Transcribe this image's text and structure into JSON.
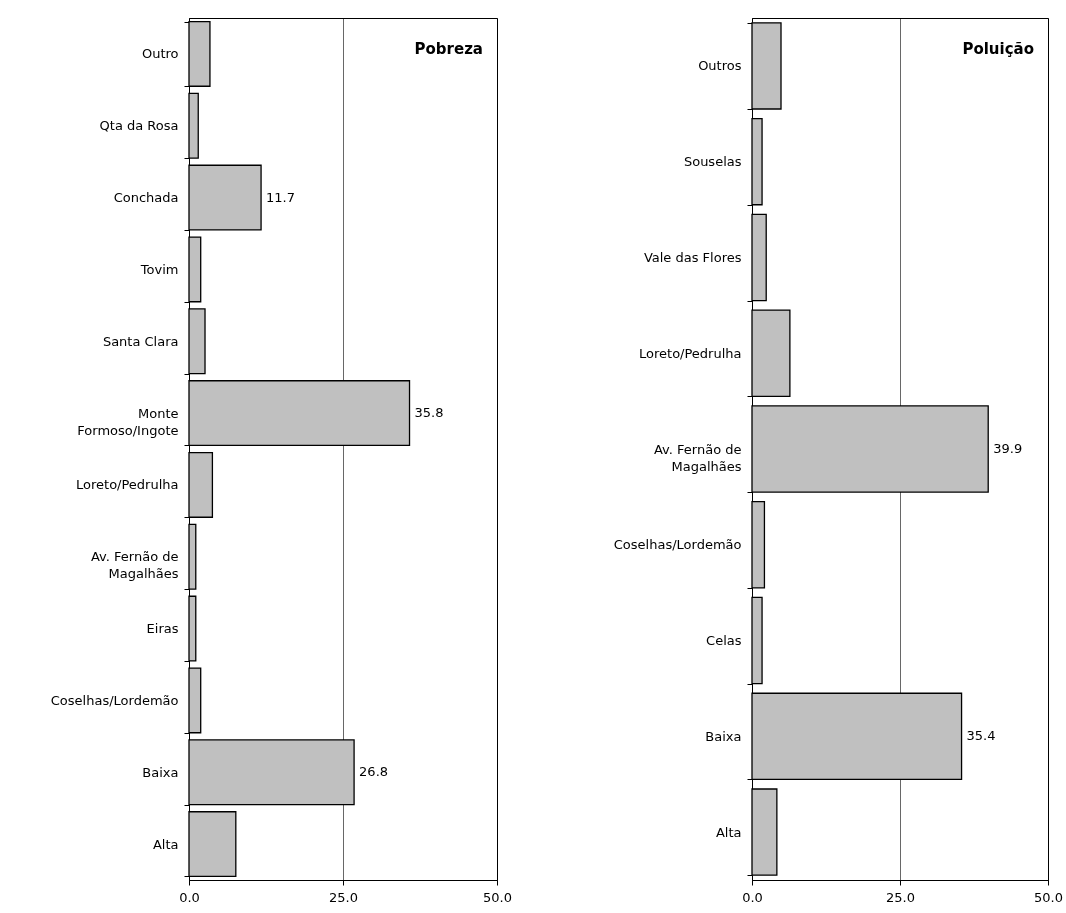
{
  "chart_data": [
    {
      "type": "bar",
      "orientation": "horizontal",
      "title": "Pobreza",
      "categories": [
        "Outro",
        "Qta da Rosa",
        "Conchada",
        "Tovim",
        "Santa Clara",
        "Monte Formoso/Ingote",
        "Loreto/Pedrulha",
        "Av. Fernão de Magalhães",
        "Eiras",
        "Coselhas/Lordemão",
        "Baixa",
        "Alta"
      ],
      "values": [
        3.4,
        1.5,
        11.7,
        1.9,
        2.6,
        35.8,
        3.8,
        1.1,
        1.1,
        1.9,
        26.8,
        7.6
      ],
      "value_labels": [
        null,
        null,
        "11.7",
        null,
        null,
        "35.8",
        null,
        null,
        null,
        null,
        "26.8",
        null
      ],
      "color": "#c0c0c0",
      "xlim": [
        0,
        50
      ],
      "xticks": [
        {
          "value": 0,
          "label": "0.0"
        },
        {
          "value": 25,
          "label": "25.0"
        },
        {
          "value": 50,
          "label": "50.0"
        }
      ],
      "grid": "x"
    },
    {
      "type": "bar",
      "orientation": "horizontal",
      "title": "Poluição",
      "categories": [
        "Outros",
        "Souselas",
        "Vale das Flores",
        "Loreto/Pedrulha",
        "Av. Fernão de Magalhães",
        "Coselhas/Lordemão",
        "Celas",
        "Baixa",
        "Alta"
      ],
      "values": [
        4.9,
        1.7,
        2.4,
        6.4,
        39.9,
        2.1,
        1.7,
        35.4,
        4.2
      ],
      "value_labels": [
        null,
        null,
        null,
        null,
        "39.9",
        null,
        null,
        "35.4",
        null
      ],
      "color": "#c0c0c0",
      "xlim": [
        0,
        50
      ],
      "xticks": [
        {
          "value": 0,
          "label": "0.0"
        },
        {
          "value": 25,
          "label": "25.0"
        },
        {
          "value": 50,
          "label": "50.0"
        }
      ],
      "grid": "x"
    }
  ]
}
